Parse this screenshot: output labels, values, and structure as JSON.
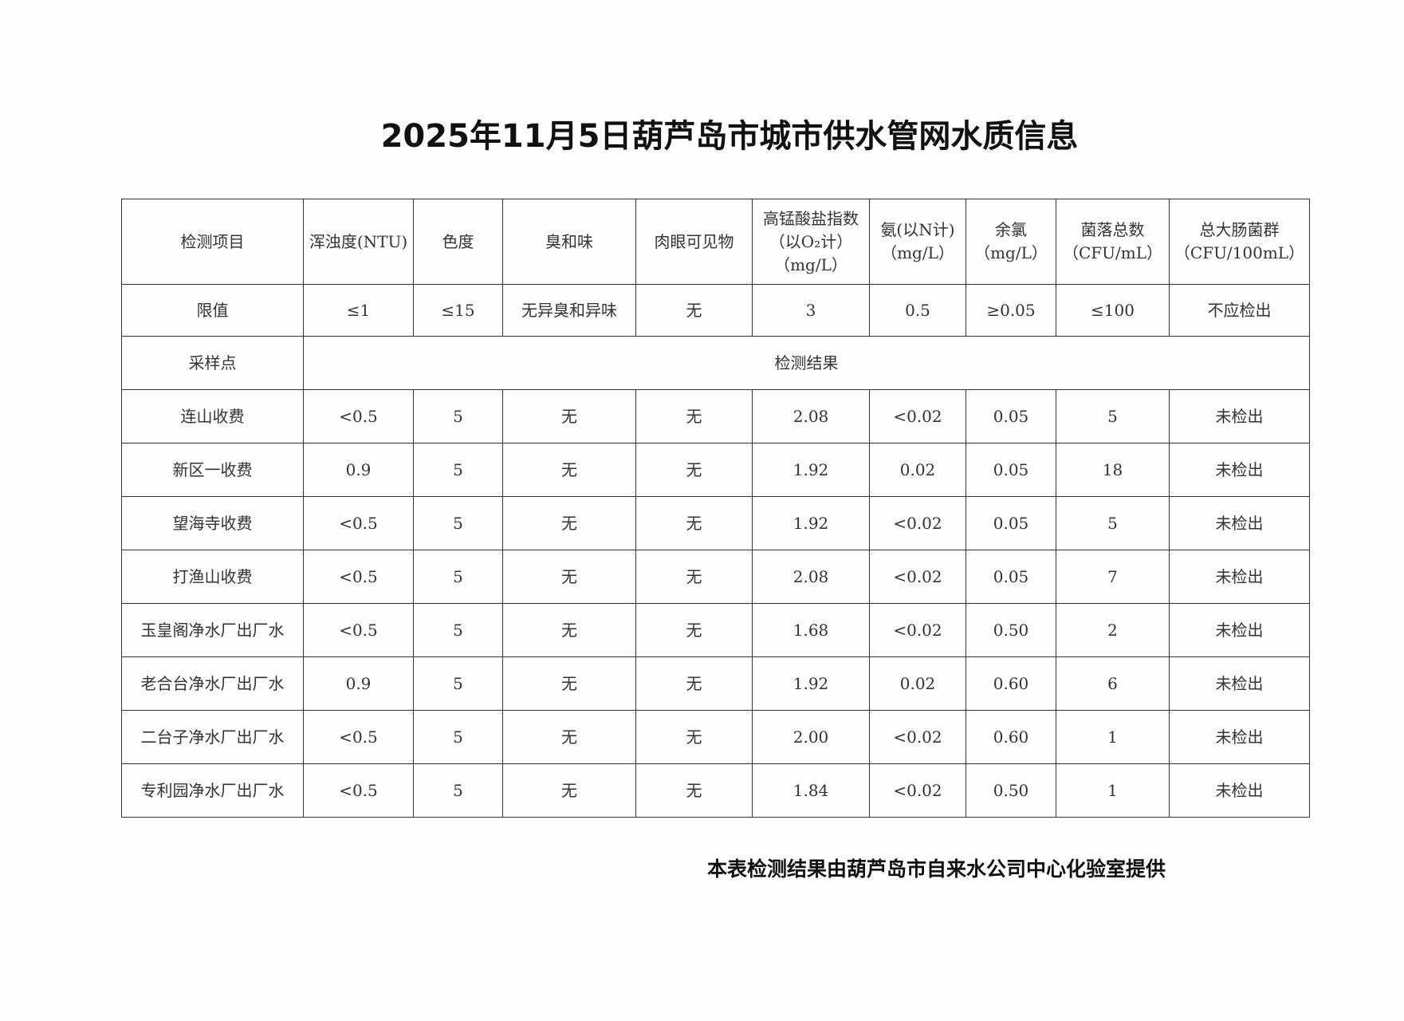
{
  "title": "2025年11月5日葫芦岛市城市供水管网水质信息",
  "headers": [
    "检测项目",
    "浑浊度(NTU)",
    "色度",
    "臭和味",
    "肉眼可见物",
    "高锰酸盐指数（以O₂计）（mg/L）",
    "氨(以N计)（mg/L）",
    "余氯（mg/L）",
    "菌落总数（CFU/mL）",
    "总大肠菌群（CFU/100mL）"
  ],
  "limits": [
    "限值",
    "≤1",
    "≤15",
    "无异臭和异味",
    "无",
    "3",
    "0.5",
    "≥0.05",
    "≤100",
    "不应检出"
  ],
  "sample_label": "采样点",
  "results_label": "检测结果",
  "rows": [
    [
      "连山收费",
      "<0.5",
      "5",
      "无",
      "无",
      "2.08",
      "<0.02",
      "0.05",
      "5",
      "未检出"
    ],
    [
      "新区一收费",
      "0.9",
      "5",
      "无",
      "无",
      "1.92",
      "0.02",
      "0.05",
      "18",
      "未检出"
    ],
    [
      "望海寺收费",
      "<0.5",
      "5",
      "无",
      "无",
      "1.92",
      "<0.02",
      "0.05",
      "5",
      "未检出"
    ],
    [
      "打渔山收费",
      "<0.5",
      "5",
      "无",
      "无",
      "2.08",
      "<0.02",
      "0.05",
      "7",
      "未检出"
    ],
    [
      "玉皇阁净水厂出厂水",
      "<0.5",
      "5",
      "无",
      "无",
      "1.68",
      "<0.02",
      "0.50",
      "2",
      "未检出"
    ],
    [
      "老合台净水厂出厂水",
      "0.9",
      "5",
      "无",
      "无",
      "1.92",
      "0.02",
      "0.60",
      "6",
      "未检出"
    ],
    [
      "二台子净水厂出厂水",
      "<0.5",
      "5",
      "无",
      "无",
      "2.00",
      "<0.02",
      "0.60",
      "1",
      "未检出"
    ],
    [
      "专利园净水厂出厂水",
      "<0.5",
      "5",
      "无",
      "无",
      "1.84",
      "<0.02",
      "0.50",
      "1",
      "未检出"
    ]
  ],
  "footer": "本表检测结果由葫芦岛市自来水公司中心化验室提供"
}
